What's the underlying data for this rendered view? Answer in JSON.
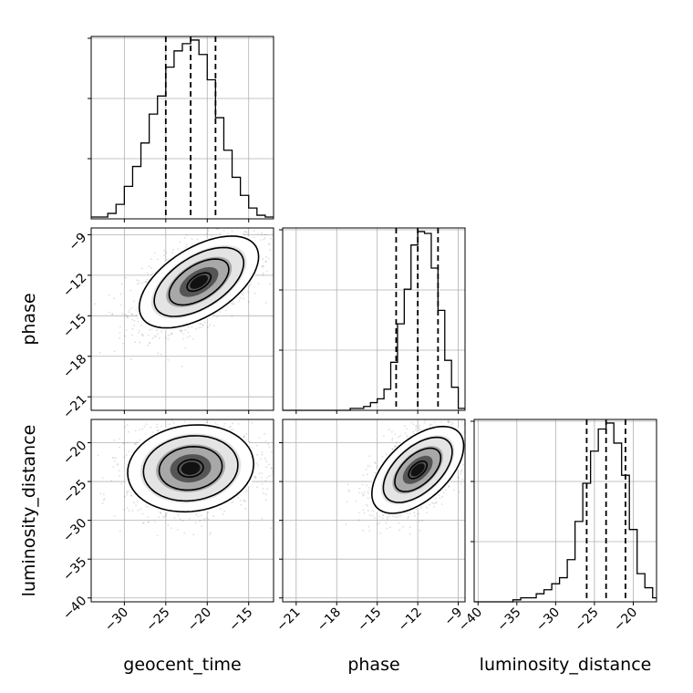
{
  "chart_data": {
    "type": "corner",
    "parameters": [
      "geocent_time",
      "phase",
      "luminosity_distance"
    ],
    "axes": {
      "geocent_time": {
        "range": [
          -34,
          -12
        ],
        "ticks": [
          -30,
          -25,
          -20,
          -15
        ],
        "tick_labels": [
          "−30",
          "−25",
          "−20",
          "−15"
        ]
      },
      "phase": {
        "range": [
          -22,
          -8.5
        ],
        "ticks": [
          -21,
          -18,
          -15,
          -12,
          -9
        ],
        "tick_labels": [
          "−21",
          "−18",
          "−15",
          "−12",
          "−9"
        ]
      },
      "luminosity_distance": {
        "range": [
          -40.5,
          -17
        ],
        "ticks": [
          -40,
          -35,
          -30,
          -25,
          -20
        ],
        "tick_labels": [
          "−40",
          "−35",
          "−30",
          "−25",
          "−20"
        ]
      }
    },
    "quantiles": {
      "geocent_time": [
        -25.0,
        -22.0,
        -19.0
      ],
      "phase": [
        -13.6,
        -12.0,
        -10.5
      ],
      "luminosity_distance": [
        -26.0,
        -23.5,
        -21.0
      ]
    },
    "histograms": {
      "geocent_time": {
        "edges": [
          -34,
          -33,
          -32,
          -31,
          -30,
          -29,
          -28,
          -27,
          -26,
          -25,
          -24,
          -23,
          -22,
          -21,
          -20,
          -19,
          -18,
          -17,
          -16,
          -15,
          -14,
          -13,
          -12
        ],
        "counts": [
          1,
          1,
          3,
          8,
          18,
          29,
          42,
          58,
          68,
          84,
          93,
          97,
          99,
          91,
          77,
          56,
          38,
          23,
          13,
          6,
          2,
          1
        ]
      },
      "phase": {
        "edges": [
          -22,
          -21.5,
          -21,
          -20.5,
          -20,
          -19.5,
          -19,
          -18.5,
          -18,
          -17.5,
          -17,
          -16.5,
          -16,
          -15.5,
          -15,
          -14.5,
          -14,
          -13.5,
          -13,
          -12.5,
          -12,
          -11.5,
          -11,
          -10.5,
          -10,
          -9.5,
          -9,
          -8.5
        ],
        "counts": [
          0,
          0,
          0,
          0,
          0,
          0,
          0,
          0,
          0,
          0,
          1,
          1,
          2,
          4,
          6,
          11,
          25,
          45,
          63,
          86,
          93,
          92,
          74,
          52,
          26,
          12,
          1
        ]
      },
      "luminosity_distance": {
        "edges": [
          -40.5,
          -39.5,
          -38.5,
          -37.5,
          -36.5,
          -35.5,
          -34.5,
          -33.5,
          -32.5,
          -31.5,
          -30.5,
          -29.5,
          -28.5,
          -27.5,
          -26.5,
          -25.5,
          -24.5,
          -23.5,
          -22.5,
          -21.5,
          -20.5,
          -19.5,
          -18.5,
          -17.5,
          -17
        ],
        "counts": [
          0,
          0,
          0,
          0,
          0,
          1,
          2,
          2,
          4,
          6,
          9,
          12,
          21,
          40,
          59,
          75,
          86,
          89,
          79,
          63,
          36,
          14,
          7,
          2
        ]
      }
    },
    "joint": [
      {
        "x": "geocent_time",
        "y": "phase",
        "mean": [
          -21,
          -12.5
        ],
        "sd": [
          3.6,
          1.7
        ],
        "corr": 0.55
      },
      {
        "x": "geocent_time",
        "y": "luminosity_distance",
        "mean": [
          -22,
          -23.3
        ],
        "sd": [
          3.8,
          2.8
        ],
        "corr": 0.1
      },
      {
        "x": "phase",
        "y": "luminosity_distance",
        "mean": [
          -12,
          -23.5
        ],
        "sd": [
          1.7,
          2.8
        ],
        "corr": 0.55
      }
    ],
    "grid": true,
    "legend": "none"
  }
}
